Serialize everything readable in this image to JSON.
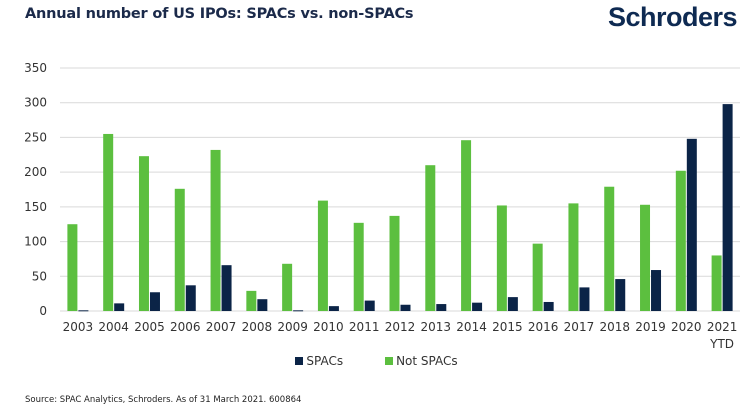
{
  "header": {
    "title": "Annual number of US IPOs: SPACs vs. non-SPACs",
    "logo_text": "Schroders"
  },
  "footer": {
    "source": "Source: SPAC Analytics, Schroders. As of 31 March 2021. 600864"
  },
  "chart_data": {
    "type": "bar",
    "title": "Annual number of US IPOs: SPACs vs. non-SPACs",
    "xlabel": "",
    "ylabel": "",
    "ylim": [
      0,
      350
    ],
    "yticks": [
      0,
      50,
      100,
      150,
      200,
      250,
      300,
      350
    ],
    "grid": true,
    "legend_position": "bottom",
    "categories": [
      "2003",
      "2004",
      "2005",
      "2006",
      "2007",
      "2008",
      "2009",
      "2010",
      "2011",
      "2012",
      "2013",
      "2014",
      "2015",
      "2016",
      "2017",
      "2018",
      "2019",
      "2020",
      "2021\nYTD"
    ],
    "series": [
      {
        "name": "Not SPACs",
        "color": "#5cbf3f",
        "values": [
          125,
          255,
          223,
          176,
          232,
          29,
          68,
          159,
          127,
          137,
          210,
          246,
          152,
          97,
          155,
          179,
          153,
          202,
          80
        ]
      },
      {
        "name": "SPACs",
        "color": "#0b2447",
        "values": [
          1,
          11,
          27,
          37,
          66,
          17,
          1,
          7,
          15,
          9,
          10,
          12,
          20,
          13,
          34,
          46,
          59,
          248,
          298
        ]
      }
    ],
    "legend_order": [
      "SPACs",
      "Not SPACs"
    ]
  }
}
